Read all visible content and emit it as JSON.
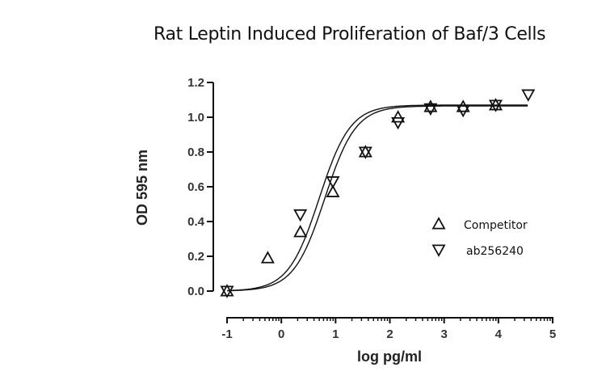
{
  "chart_data": {
    "type": "scatter",
    "title": "Rat Leptin Induced Proliferation of Baf/3 Cells",
    "xlabel": "log pg/ml",
    "ylabel": "OD 595 nm",
    "xlim": [
      -1,
      5
    ],
    "ylim": [
      0.0,
      1.2
    ],
    "xticks": [
      "-1",
      "0",
      "1",
      "2",
      "3",
      "4",
      "5"
    ],
    "yticks": [
      "0.0",
      "0.2",
      "0.4",
      "0.6",
      "0.8",
      "1.0",
      "1.2"
    ],
    "grid": false,
    "legend_position": "right-middle inside",
    "fit": "four-parameter logistic (sigmoidal) curve per series",
    "series": [
      {
        "name": "Competitor",
        "marker": "open-triangle-up",
        "x": [
          -1.0,
          -0.25,
          0.35,
          0.95,
          1.55,
          2.15,
          2.75,
          3.35,
          3.95
        ],
        "y": [
          0.0,
          0.19,
          0.34,
          0.57,
          0.8,
          1.0,
          1.06,
          1.06,
          1.07
        ]
      },
      {
        "name": "ab256240",
        "marker": "open-triangle-down",
        "x": [
          -1.0,
          0.35,
          0.95,
          1.55,
          2.15,
          2.75,
          3.35,
          3.95,
          4.55
        ],
        "y": [
          0.0,
          0.44,
          0.63,
          0.8,
          0.97,
          1.05,
          1.04,
          1.07,
          1.13
        ]
      }
    ]
  },
  "legend": {
    "items": [
      {
        "label": "Competitor",
        "marker": "triangle-up-icon"
      },
      {
        "label": "ab256240",
        "marker": "triangle-down-icon"
      }
    ]
  }
}
